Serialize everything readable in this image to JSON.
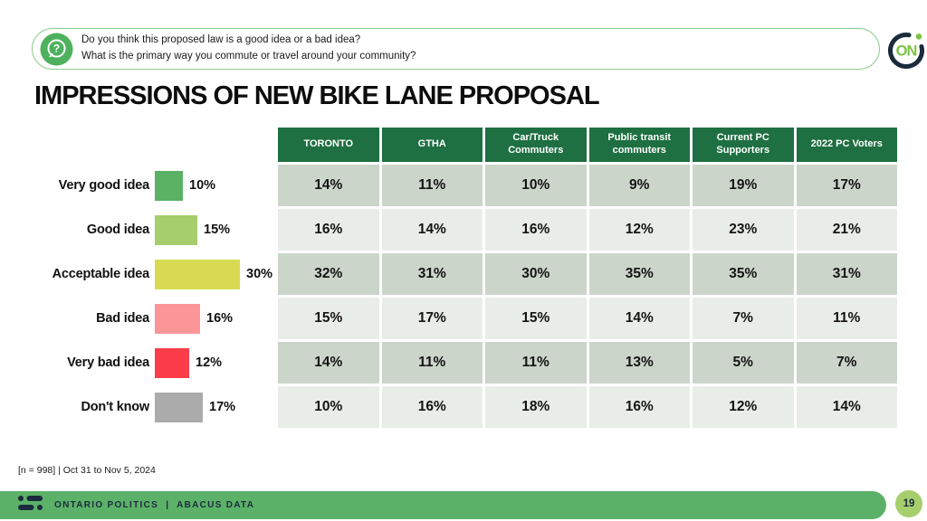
{
  "question_box": {
    "icon": "question-bubble-icon",
    "line1": "Do you think this proposed law is a good idea or a bad idea?",
    "line2": "What is the primary way you commute or travel around your community?"
  },
  "on_logo": {
    "text": "ON"
  },
  "title": "IMPRESSIONS OF NEW BIKE LANE PROPOSAL",
  "chart_data": [
    {
      "type": "bar",
      "orientation": "horizontal",
      "title": "",
      "categories": [
        "Very good idea",
        "Good idea",
        "Acceptable idea",
        "Bad idea",
        "Very bad idea",
        "Don't know"
      ],
      "values": [
        10,
        15,
        30,
        16,
        12,
        17
      ],
      "value_suffix": "%",
      "bar_colors": [
        "#5BB164",
        "#A6CE6C",
        "#D8DB52",
        "#FB9598",
        "#FB3D49",
        "#ABABAB"
      ],
      "xlim": [
        0,
        32
      ],
      "grid": false,
      "legend": false
    },
    {
      "type": "table",
      "columns": [
        "TORONTO",
        "GTHA",
        "Car/Truck Commuters",
        "Public transit commuters",
        "Current PC Supporters",
        "2022 PC Voters"
      ],
      "row_labels": [
        "Very good idea",
        "Good idea",
        "Acceptable idea",
        "Bad idea",
        "Very bad idea",
        "Don't know"
      ],
      "rows": [
        [
          "14%",
          "11%",
          "10%",
          "9%",
          "19%",
          "17%"
        ],
        [
          "16%",
          "14%",
          "16%",
          "12%",
          "23%",
          "21%"
        ],
        [
          "32%",
          "31%",
          "30%",
          "35%",
          "35%",
          "31%"
        ],
        [
          "15%",
          "17%",
          "15%",
          "14%",
          "7%",
          "11%"
        ],
        [
          "14%",
          "11%",
          "11%",
          "13%",
          "5%",
          "7%"
        ],
        [
          "10%",
          "16%",
          "18%",
          "16%",
          "12%",
          "14%"
        ]
      ]
    }
  ],
  "footnote": "[n = 998] | Oct 31 to Nov 5, 2024",
  "footer": {
    "brand": "ONTARIO POLITICS  |  ABACUS DATA",
    "page": "19"
  },
  "theme": {
    "header_green": "#1E6F41",
    "row_dark": "#CBD5CA",
    "row_light": "#E9EDE7",
    "footer_green": "#5CB168",
    "badge_green": "#A6CE6C",
    "navy": "#1B2B3C",
    "lime": "#7DC242",
    "question_green": "#4DB15D",
    "box_border_green": "#8FCE92"
  }
}
